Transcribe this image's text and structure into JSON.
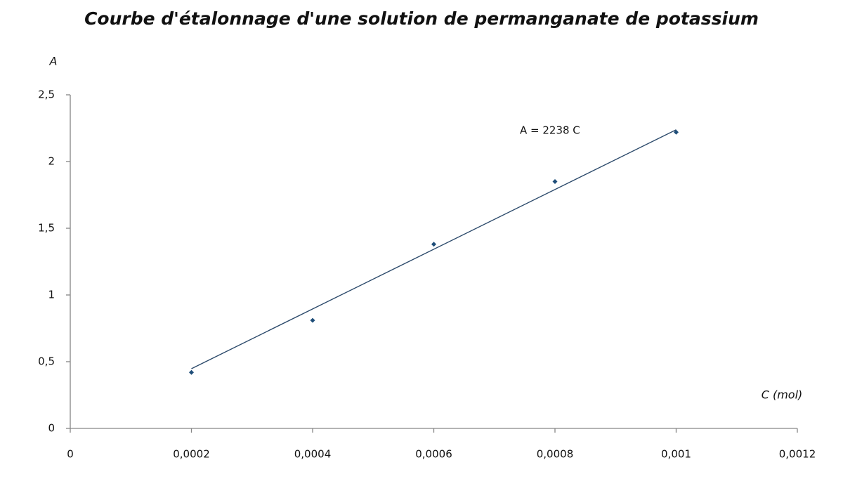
{
  "chart_data": {
    "type": "scatter",
    "title": "Courbe d'étalonnage d'une solution de permanganate de potassium",
    "x_label": "C (mol)",
    "y_label": "A",
    "series": [
      {
        "name": null,
        "color": "#1f4e79",
        "x": [
          0.0002,
          0.0004,
          0.0006,
          0.0008,
          0.001
        ],
        "values": [
          0.42,
          0.81,
          1.38,
          1.85,
          2.22
        ]
      }
    ],
    "trendline": {
      "label": "A = 2238 C",
      "slope": 2238,
      "x": [
        0.0002,
        0.001
      ],
      "color": "#2c4a6b"
    },
    "xlim": [
      0,
      0.0012
    ],
    "xticks": [
      0,
      {
        "value": 0.0002,
        "label": "0,0002"
      },
      {
        "value": 0.0004,
        "label": "0,0004"
      },
      {
        "value": 0.0006,
        "label": "0,0006"
      },
      {
        "value": 0.0008,
        "label": "0,0008"
      },
      {
        "value": 0.001,
        "label": "0,001"
      },
      {
        "value": 0.0012,
        "label": "0,0012"
      }
    ],
    "ylim": [
      0,
      2.5
    ],
    "yticks": [
      0,
      {
        "value": 0.5,
        "label": "0,5"
      },
      1,
      {
        "value": 1.5,
        "label": "1,5"
      },
      2,
      {
        "value": 2.5,
        "label": "2,5"
      }
    ],
    "grid": false
  }
}
